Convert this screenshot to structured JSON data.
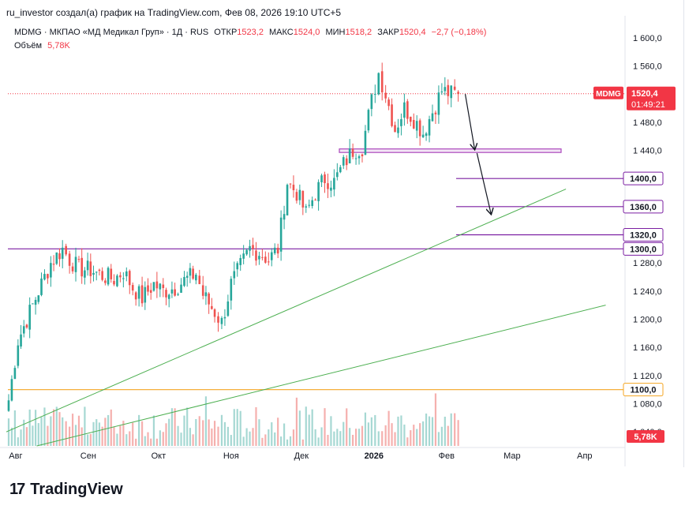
{
  "header": {
    "author_line": "ru_investor создал(а) график на TradingView.com, Фев 08, 2026 19:10 UTC+5"
  },
  "legend": {
    "symbol_line": "MDMG · МКПАО «МД Медикал Груп» · 1Д · RUS",
    "open_label": "ОТКР",
    "open_value": "1523,2",
    "high_label": "МАКС",
    "high_value": "1524,0",
    "low_label": "МИН",
    "low_value": "1518,2",
    "close_label": "ЗАКР",
    "close_value": "1520,4",
    "change_value": "−2,7 (−0,18%)",
    "volume_label": "Объём",
    "volume_value": "5,78K"
  },
  "footer": {
    "brand_mark": "17",
    "brand_name": "TradingView"
  },
  "colors": {
    "up": "#26a69a",
    "down": "#ef5350",
    "up_volume": "#a6d8d3",
    "down_volume": "#f5b0ae",
    "purple": "#7b1fa2",
    "green_line": "#4caf50",
    "orange_line": "#f5a623",
    "price_badge": "#f23645"
  },
  "chart_data": {
    "type": "candlestick",
    "symbol": "MDMG",
    "timeframe": "1Д",
    "y_range": [
      1020,
      1620
    ],
    "y_ticks": [
      "1 600,0",
      "1 560,0",
      "1 520,0",
      "1 480,0",
      "1 440,0",
      "1 400,0",
      "1 360,0",
      "1 320,0",
      "1 280,0",
      "1 240,0",
      "1 200,0",
      "1 160,0",
      "1 120,0",
      "1 080,0",
      "1 040,0"
    ],
    "x_ticks": [
      "Авг",
      "Сен",
      "Окт",
      "Ноя",
      "Дек",
      "2026",
      "Фев",
      "Мар",
      "Апр"
    ],
    "current_price": {
      "ticker": "MDMG",
      "value": "1520,4",
      "countdown": "01:49:21"
    },
    "volume_badge": "5,78K",
    "levels": [
      {
        "label": "1400,0",
        "value": 1400
      },
      {
        "label": "1360,0",
        "value": 1360
      },
      {
        "label": "1320,0",
        "value": 1320
      },
      {
        "label": "1300,0",
        "value": 1300
      },
      {
        "label": "1100,0",
        "value": 1100
      }
    ],
    "support_zone": [
      1437,
      1442
    ],
    "trend_lines": [
      {
        "from": [
          "2025-07-28",
          1040
        ],
        "to": [
          "2026-03-24",
          1385
        ]
      },
      {
        "from": [
          "2025-08-10",
          1020
        ],
        "to": [
          "2026-04-10",
          1220
        ]
      }
    ],
    "projection_arrows": [
      {
        "from": [
          "2026-02-09",
          1520
        ],
        "to": [
          "2026-02-13",
          1442
        ]
      },
      {
        "from": [
          "2026-02-14",
          1436
        ],
        "to": [
          "2026-02-20",
          1350
        ]
      }
    ],
    "close_path": [
      [
        "2025-07-29",
        1085
      ],
      [
        "2025-08-02",
        1170
      ],
      [
        "2025-08-07",
        1210
      ],
      [
        "2025-08-12",
        1250
      ],
      [
        "2025-08-16",
        1280
      ],
      [
        "2025-08-21",
        1300
      ],
      [
        "2025-08-24",
        1285
      ],
      [
        "2025-08-28",
        1272
      ],
      [
        "2025-09-02",
        1270
      ],
      [
        "2025-09-07",
        1262
      ],
      [
        "2025-09-12",
        1257
      ],
      [
        "2025-09-16",
        1268
      ],
      [
        "2025-09-20",
        1245
      ],
      [
        "2025-09-24",
        1230
      ],
      [
        "2025-09-29",
        1250
      ],
      [
        "2025-10-03",
        1240
      ],
      [
        "2025-10-08",
        1245
      ],
      [
        "2025-10-12",
        1255
      ],
      [
        "2025-10-17",
        1265
      ],
      [
        "2025-10-20",
        1235
      ],
      [
        "2025-10-25",
        1210
      ],
      [
        "2025-10-28",
        1195
      ],
      [
        "2025-11-01",
        1250
      ],
      [
        "2025-11-05",
        1275
      ],
      [
        "2025-11-09",
        1300
      ],
      [
        "2025-11-13",
        1295
      ],
      [
        "2025-11-17",
        1285
      ],
      [
        "2025-11-21",
        1300
      ],
      [
        "2025-11-25",
        1395
      ],
      [
        "2025-11-29",
        1380
      ],
      [
        "2025-12-03",
        1350
      ],
      [
        "2025-12-07",
        1380
      ],
      [
        "2025-12-11",
        1400
      ],
      [
        "2025-12-15",
        1395
      ],
      [
        "2025-12-19",
        1420
      ],
      [
        "2025-12-23",
        1440
      ],
      [
        "2025-12-27",
        1445
      ],
      [
        "2025-12-31",
        1510
      ],
      [
        "2026-01-03",
        1550
      ],
      [
        "2026-01-06",
        1520
      ],
      [
        "2026-01-10",
        1470
      ],
      [
        "2026-01-14",
        1500
      ],
      [
        "2026-01-18",
        1485
      ],
      [
        "2026-01-22",
        1465
      ],
      [
        "2026-01-26",
        1495
      ],
      [
        "2026-01-30",
        1525
      ],
      [
        "2026-02-03",
        1520
      ],
      [
        "2026-02-06",
        1520
      ]
    ]
  }
}
